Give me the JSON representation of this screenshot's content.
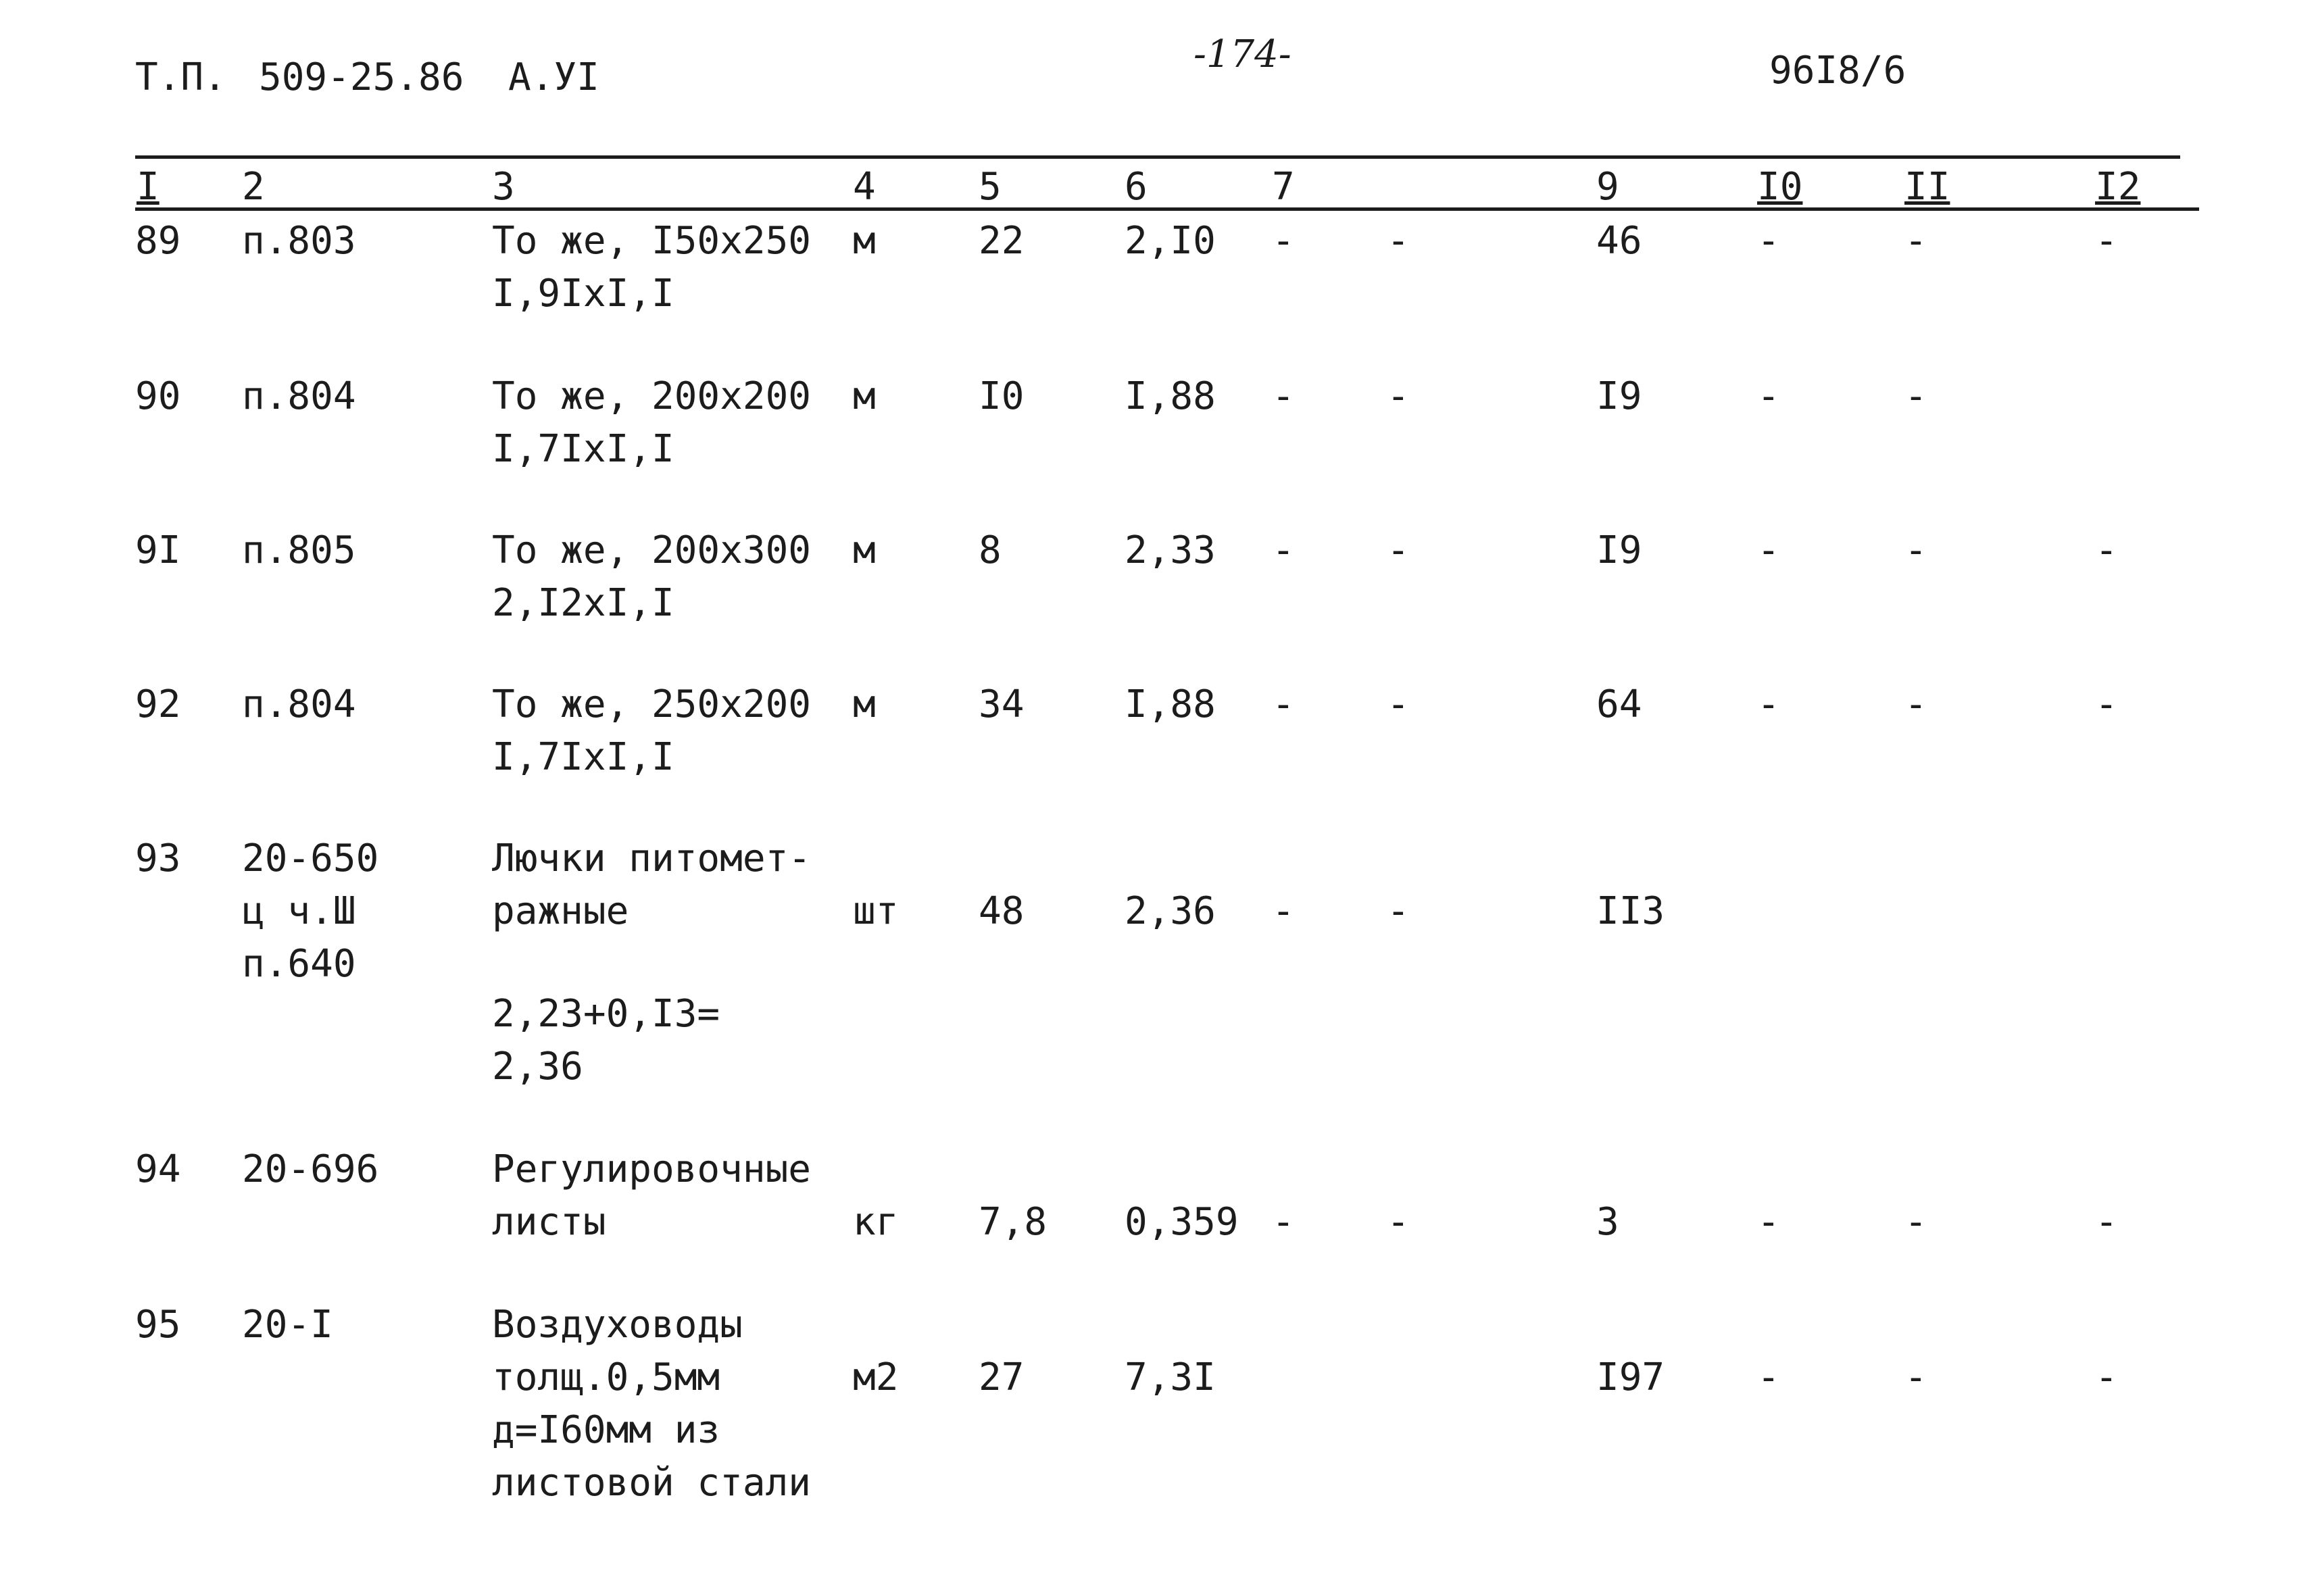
{
  "header": {
    "series": "Т.П.",
    "project": "509-25.86",
    "album": "А.УI",
    "page": "-174-",
    "code": "96I8/6"
  },
  "columns": [
    "I",
    "2",
    "3",
    "4",
    "5",
    "6",
    "7",
    "9",
    "I0",
    "II",
    "I2"
  ],
  "rows": [
    {
      "n": "89",
      "ref": [
        "п.803"
      ],
      "name": [
        "То же, I50x250",
        "I,9IxI,I"
      ],
      "unit": "м",
      "qty": "22",
      "price": "2,I0",
      "c7": "-",
      "c8": "-",
      "c9": "46",
      "c10": "-",
      "c11": "-",
      "c12": "-"
    },
    {
      "n": "90",
      "ref": [
        "п.804"
      ],
      "name": [
        "То же, 200x200",
        "I,7IxI,I"
      ],
      "unit": "м",
      "qty": "I0",
      "price": "I,88",
      "c7": "-",
      "c8": "-",
      "c9": "I9",
      "c10": "-",
      "c11": "-",
      "c12": ""
    },
    {
      "n": "9I",
      "ref": [
        "п.805"
      ],
      "name": [
        "То же, 200x300",
        "2,I2xI,I"
      ],
      "unit": "м",
      "qty": "8",
      "price": "2,33",
      "c7": "-",
      "c8": "-",
      "c9": "I9",
      "c10": "-",
      "c11": "-",
      "c12": "-"
    },
    {
      "n": "92",
      "ref": [
        "п.804"
      ],
      "name": [
        "То же, 250x200",
        "I,7IxI,I"
      ],
      "unit": "м",
      "qty": "34",
      "price": "I,88",
      "c7": "-",
      "c8": "-",
      "c9": "64",
      "c10": "-",
      "c11": "-",
      "c12": "-"
    },
    {
      "n": "93",
      "ref": [
        "20-650",
        "ц ч.Ш",
        "п.640"
      ],
      "name": [
        "Лючки питомет-",
        "ражные"
      ],
      "note": [
        "2,23+0,I3=",
        "2,36"
      ],
      "unit": "шт",
      "qty": "48",
      "price": "2,36",
      "c7": "-",
      "c8": "-",
      "c9": "II3",
      "c10": "",
      "c11": "",
      "c12": ""
    },
    {
      "n": "94",
      "ref": [
        "20-696"
      ],
      "name": [
        "Регулировочные",
        "листы"
      ],
      "unit": "кг",
      "qty": "7,8",
      "price": "0,359",
      "c7": "-",
      "c8": "-",
      "c9": "3",
      "c10": "-",
      "c11": "-",
      "c12": "-"
    },
    {
      "n": "95",
      "ref": [
        "20-I"
      ],
      "name": [
        "Воздуховоды",
        "толщ.0,5мм",
        "д=I60мм из",
        "листовой стали"
      ],
      "unit": "м2",
      "qty": "27",
      "price": "7,3I",
      "c7": "",
      "c8": "",
      "c9": "I97",
      "c10": "-",
      "c11": "-",
      "c12": "-"
    }
  ]
}
